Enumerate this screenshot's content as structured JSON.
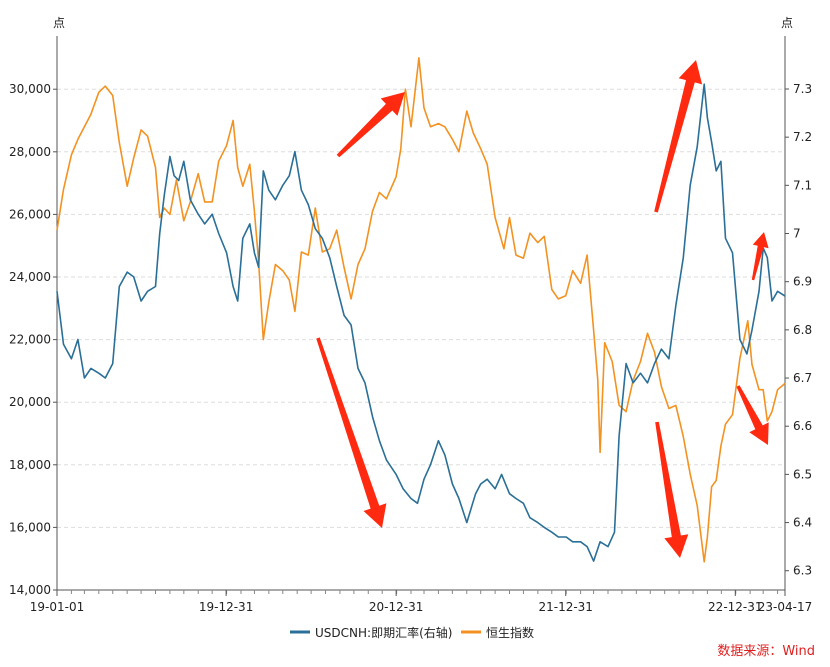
{
  "chart_data": {
    "type": "line",
    "y_left_unit": "点",
    "y_right_unit": "点",
    "y_left_range": [
      14000,
      31700
    ],
    "y_right_range": [
      6.26,
      7.41
    ],
    "y_left_ticks": [
      "14,000",
      "16,000",
      "18,000",
      "20,000",
      "22,000",
      "24,000",
      "26,000",
      "28,000",
      "30,000"
    ],
    "y_left_tick_values": [
      14000,
      16000,
      18000,
      20000,
      22000,
      24000,
      26000,
      28000,
      30000
    ],
    "y_right_ticks": [
      "6.3",
      "6.4",
      "6.5",
      "6.6",
      "6.7",
      "6.8",
      "6.9",
      "7",
      "7.1",
      "7.2",
      "7.3"
    ],
    "y_right_tick_values": [
      6.3,
      6.4,
      6.5,
      6.6,
      6.7,
      6.8,
      6.9,
      7.0,
      7.1,
      7.2,
      7.3
    ],
    "x_range": [
      "2019-01-01",
      "2023-04-17"
    ],
    "x_tick_labels": [
      "19-01-01",
      "19-12-31",
      "20-12-31",
      "21-12-31",
      "22-12-31",
      "23-04-17"
    ],
    "x_tick_dates": [
      "2019-01-01",
      "2019-12-31",
      "2020-12-31",
      "2021-12-31",
      "2022-12-31",
      "2023-04-17"
    ],
    "grid": "horizontal dashed",
    "legend_position": "bottom",
    "series": [
      {
        "name": "USDCNH:即期汇率(右轴)",
        "axis": "right",
        "color": "#2a6f97",
        "points": [
          [
            "2019-01-01",
            6.88
          ],
          [
            "2019-01-15",
            6.77
          ],
          [
            "2019-02-01",
            6.74
          ],
          [
            "2019-02-15",
            6.78
          ],
          [
            "2019-03-01",
            6.7
          ],
          [
            "2019-03-15",
            6.72
          ],
          [
            "2019-04-01",
            6.71
          ],
          [
            "2019-04-15",
            6.7
          ],
          [
            "2019-05-01",
            6.73
          ],
          [
            "2019-05-15",
            6.89
          ],
          [
            "2019-06-01",
            6.92
          ],
          [
            "2019-06-15",
            6.91
          ],
          [
            "2019-07-01",
            6.86
          ],
          [
            "2019-07-15",
            6.88
          ],
          [
            "2019-08-01",
            6.89
          ],
          [
            "2019-08-10",
            7.0
          ],
          [
            "2019-08-20",
            7.08
          ],
          [
            "2019-09-01",
            7.16
          ],
          [
            "2019-09-10",
            7.12
          ],
          [
            "2019-09-20",
            7.11
          ],
          [
            "2019-10-01",
            7.15
          ],
          [
            "2019-10-15",
            7.07
          ],
          [
            "2019-11-01",
            7.04
          ],
          [
            "2019-11-15",
            7.02
          ],
          [
            "2019-12-01",
            7.04
          ],
          [
            "2019-12-15",
            7.0
          ],
          [
            "2020-01-01",
            6.96
          ],
          [
            "2020-01-15",
            6.89
          ],
          [
            "2020-01-25",
            6.86
          ],
          [
            "2020-02-05",
            6.99
          ],
          [
            "2020-02-20",
            7.02
          ],
          [
            "2020-03-01",
            6.96
          ],
          [
            "2020-03-10",
            6.93
          ],
          [
            "2020-03-20",
            7.13
          ],
          [
            "2020-04-01",
            7.09
          ],
          [
            "2020-04-15",
            7.07
          ],
          [
            "2020-05-01",
            7.1
          ],
          [
            "2020-05-15",
            7.12
          ],
          [
            "2020-05-27",
            7.17
          ],
          [
            "2020-06-10",
            7.09
          ],
          [
            "2020-06-25",
            7.06
          ],
          [
            "2020-07-10",
            7.01
          ],
          [
            "2020-07-25",
            6.99
          ],
          [
            "2020-08-10",
            6.95
          ],
          [
            "2020-08-25",
            6.89
          ],
          [
            "2020-09-10",
            6.83
          ],
          [
            "2020-09-25",
            6.81
          ],
          [
            "2020-10-10",
            6.72
          ],
          [
            "2020-10-25",
            6.69
          ],
          [
            "2020-11-10",
            6.62
          ],
          [
            "2020-11-25",
            6.57
          ],
          [
            "2020-12-10",
            6.53
          ],
          [
            "2020-12-31",
            6.5
          ],
          [
            "2021-01-15",
            6.47
          ],
          [
            "2021-02-01",
            6.45
          ],
          [
            "2021-02-15",
            6.44
          ],
          [
            "2021-03-01",
            6.49
          ],
          [
            "2021-03-15",
            6.52
          ],
          [
            "2021-04-01",
            6.57
          ],
          [
            "2021-04-15",
            6.54
          ],
          [
            "2021-05-01",
            6.48
          ],
          [
            "2021-05-15",
            6.45
          ],
          [
            "2021-06-01",
            6.4
          ],
          [
            "2021-06-20",
            6.46
          ],
          [
            "2021-07-01",
            6.48
          ],
          [
            "2021-07-15",
            6.49
          ],
          [
            "2021-08-01",
            6.47
          ],
          [
            "2021-08-15",
            6.5
          ],
          [
            "2021-09-01",
            6.46
          ],
          [
            "2021-09-15",
            6.45
          ],
          [
            "2021-10-01",
            6.44
          ],
          [
            "2021-10-15",
            6.41
          ],
          [
            "2021-11-01",
            6.4
          ],
          [
            "2021-11-15",
            6.39
          ],
          [
            "2021-12-01",
            6.38
          ],
          [
            "2021-12-15",
            6.37
          ],
          [
            "2022-01-01",
            6.37
          ],
          [
            "2022-01-15",
            6.36
          ],
          [
            "2022-02-01",
            6.36
          ],
          [
            "2022-02-15",
            6.35
          ],
          [
            "2022-03-01",
            6.32
          ],
          [
            "2022-03-15",
            6.36
          ],
          [
            "2022-04-01",
            6.35
          ],
          [
            "2022-04-15",
            6.38
          ],
          [
            "2022-04-25",
            6.58
          ],
          [
            "2022-05-10",
            6.73
          ],
          [
            "2022-05-25",
            6.69
          ],
          [
            "2022-06-10",
            6.71
          ],
          [
            "2022-06-25",
            6.69
          ],
          [
            "2022-07-10",
            6.73
          ],
          [
            "2022-07-25",
            6.76
          ],
          [
            "2022-08-10",
            6.74
          ],
          [
            "2022-08-25",
            6.85
          ],
          [
            "2022-09-10",
            6.95
          ],
          [
            "2022-09-25",
            7.1
          ],
          [
            "2022-10-10",
            7.18
          ],
          [
            "2022-10-25",
            7.31
          ],
          [
            "2022-11-01",
            7.24
          ],
          [
            "2022-11-10",
            7.19
          ],
          [
            "2022-11-20",
            7.13
          ],
          [
            "2022-11-30",
            7.15
          ],
          [
            "2022-12-10",
            6.99
          ],
          [
            "2022-12-25",
            6.96
          ],
          [
            "2023-01-10",
            6.78
          ],
          [
            "2023-01-25",
            6.75
          ],
          [
            "2023-02-05",
            6.8
          ],
          [
            "2023-02-20",
            6.88
          ],
          [
            "2023-03-01",
            6.97
          ],
          [
            "2023-03-10",
            6.95
          ],
          [
            "2023-03-20",
            6.86
          ],
          [
            "2023-04-01",
            6.88
          ],
          [
            "2023-04-17",
            6.87
          ]
        ]
      },
      {
        "name": "恒生指数",
        "axis": "left",
        "color": "#f39221",
        "points": [
          [
            "2019-01-01",
            25500
          ],
          [
            "2019-01-15",
            26800
          ],
          [
            "2019-02-01",
            27900
          ],
          [
            "2019-02-15",
            28400
          ],
          [
            "2019-03-01",
            28800
          ],
          [
            "2019-03-15",
            29200
          ],
          [
            "2019-04-01",
            29900
          ],
          [
            "2019-04-15",
            30100
          ],
          [
            "2019-05-01",
            29800
          ],
          [
            "2019-05-15",
            28300
          ],
          [
            "2019-06-01",
            26900
          ],
          [
            "2019-06-15",
            27800
          ],
          [
            "2019-07-01",
            28700
          ],
          [
            "2019-07-15",
            28500
          ],
          [
            "2019-08-01",
            27500
          ],
          [
            "2019-08-10",
            25900
          ],
          [
            "2019-08-20",
            26200
          ],
          [
            "2019-09-01",
            26000
          ],
          [
            "2019-09-15",
            27100
          ],
          [
            "2019-10-01",
            25800
          ],
          [
            "2019-10-15",
            26400
          ],
          [
            "2019-11-01",
            27300
          ],
          [
            "2019-11-15",
            26400
          ],
          [
            "2019-12-01",
            26400
          ],
          [
            "2019-12-15",
            27700
          ],
          [
            "2020-01-01",
            28200
          ],
          [
            "2020-01-15",
            29000
          ],
          [
            "2020-01-25",
            27500
          ],
          [
            "2020-02-05",
            26900
          ],
          [
            "2020-02-20",
            27600
          ],
          [
            "2020-03-01",
            26100
          ],
          [
            "2020-03-10",
            24500
          ],
          [
            "2020-03-20",
            22000
          ],
          [
            "2020-04-01",
            23200
          ],
          [
            "2020-04-15",
            24400
          ],
          [
            "2020-05-01",
            24200
          ],
          [
            "2020-05-15",
            23900
          ],
          [
            "2020-05-27",
            22900
          ],
          [
            "2020-06-10",
            24800
          ],
          [
            "2020-06-25",
            24700
          ],
          [
            "2020-07-10",
            26200
          ],
          [
            "2020-07-25",
            24800
          ],
          [
            "2020-08-10",
            24900
          ],
          [
            "2020-08-25",
            25500
          ],
          [
            "2020-09-10",
            24300
          ],
          [
            "2020-09-25",
            23300
          ],
          [
            "2020-10-10",
            24400
          ],
          [
            "2020-10-25",
            24900
          ],
          [
            "2020-11-10",
            26100
          ],
          [
            "2020-11-25",
            26700
          ],
          [
            "2020-12-10",
            26500
          ],
          [
            "2020-12-31",
            27200
          ],
          [
            "2021-01-10",
            28100
          ],
          [
            "2021-01-20",
            30000
          ],
          [
            "2021-02-01",
            28800
          ],
          [
            "2021-02-18",
            31000
          ],
          [
            "2021-03-01",
            29400
          ],
          [
            "2021-03-15",
            28800
          ],
          [
            "2021-04-01",
            28900
          ],
          [
            "2021-04-15",
            28800
          ],
          [
            "2021-05-01",
            28400
          ],
          [
            "2021-05-15",
            28000
          ],
          [
            "2021-06-01",
            29300
          ],
          [
            "2021-06-15",
            28600
          ],
          [
            "2021-07-01",
            28100
          ],
          [
            "2021-07-15",
            27600
          ],
          [
            "2021-08-01",
            25900
          ],
          [
            "2021-08-20",
            24900
          ],
          [
            "2021-09-01",
            25900
          ],
          [
            "2021-09-15",
            24700
          ],
          [
            "2021-10-01",
            24600
          ],
          [
            "2021-10-15",
            25400
          ],
          [
            "2021-11-01",
            25100
          ],
          [
            "2021-11-15",
            25300
          ],
          [
            "2021-12-01",
            23600
          ],
          [
            "2021-12-15",
            23300
          ],
          [
            "2021-12-31",
            23400
          ],
          [
            "2022-01-15",
            24200
          ],
          [
            "2022-02-01",
            23800
          ],
          [
            "2022-02-15",
            24700
          ],
          [
            "2022-03-01",
            22300
          ],
          [
            "2022-03-10",
            20700
          ],
          [
            "2022-03-15",
            18400
          ],
          [
            "2022-03-25",
            21900
          ],
          [
            "2022-04-10",
            21300
          ],
          [
            "2022-04-25",
            19900
          ],
          [
            "2022-05-10",
            19700
          ],
          [
            "2022-05-25",
            20700
          ],
          [
            "2022-06-10",
            21300
          ],
          [
            "2022-06-25",
            22200
          ],
          [
            "2022-07-10",
            21600
          ],
          [
            "2022-07-25",
            20500
          ],
          [
            "2022-08-10",
            19800
          ],
          [
            "2022-08-25",
            19900
          ],
          [
            "2022-09-10",
            18900
          ],
          [
            "2022-09-25",
            17700
          ],
          [
            "2022-10-10",
            16700
          ],
          [
            "2022-10-25",
            14900
          ],
          [
            "2022-11-01",
            15700
          ],
          [
            "2022-11-10",
            17300
          ],
          [
            "2022-11-20",
            17500
          ],
          [
            "2022-11-30",
            18600
          ],
          [
            "2022-12-10",
            19300
          ],
          [
            "2022-12-25",
            19600
          ],
          [
            "2023-01-10",
            21400
          ],
          [
            "2023-01-27",
            22600
          ],
          [
            "2023-02-05",
            21200
          ],
          [
            "2023-02-20",
            20400
          ],
          [
            "2023-03-01",
            20400
          ],
          [
            "2023-03-10",
            19400
          ],
          [
            "2023-03-20",
            19700
          ],
          [
            "2023-04-01",
            20400
          ],
          [
            "2023-04-17",
            20600
          ]
        ]
      }
    ],
    "annotations": [
      {
        "kind": "arrow",
        "direction": "up",
        "color": "#ff2a10"
      },
      {
        "kind": "arrow",
        "direction": "down",
        "color": "#ff2a10"
      },
      {
        "kind": "arrow",
        "direction": "up",
        "color": "#ff2a10"
      },
      {
        "kind": "arrow",
        "direction": "down",
        "color": "#ff2a10"
      },
      {
        "kind": "arrow",
        "direction": "up",
        "color": "#ff2a10"
      },
      {
        "kind": "arrow",
        "direction": "down",
        "color": "#ff2a10"
      }
    ]
  },
  "legend": {
    "items": [
      {
        "label": "USDCNH:即期汇率(右轴)",
        "color": "#2a6f97"
      },
      {
        "label": "恒生指数",
        "color": "#f39221"
      }
    ]
  },
  "source": "数据来源：Wind"
}
